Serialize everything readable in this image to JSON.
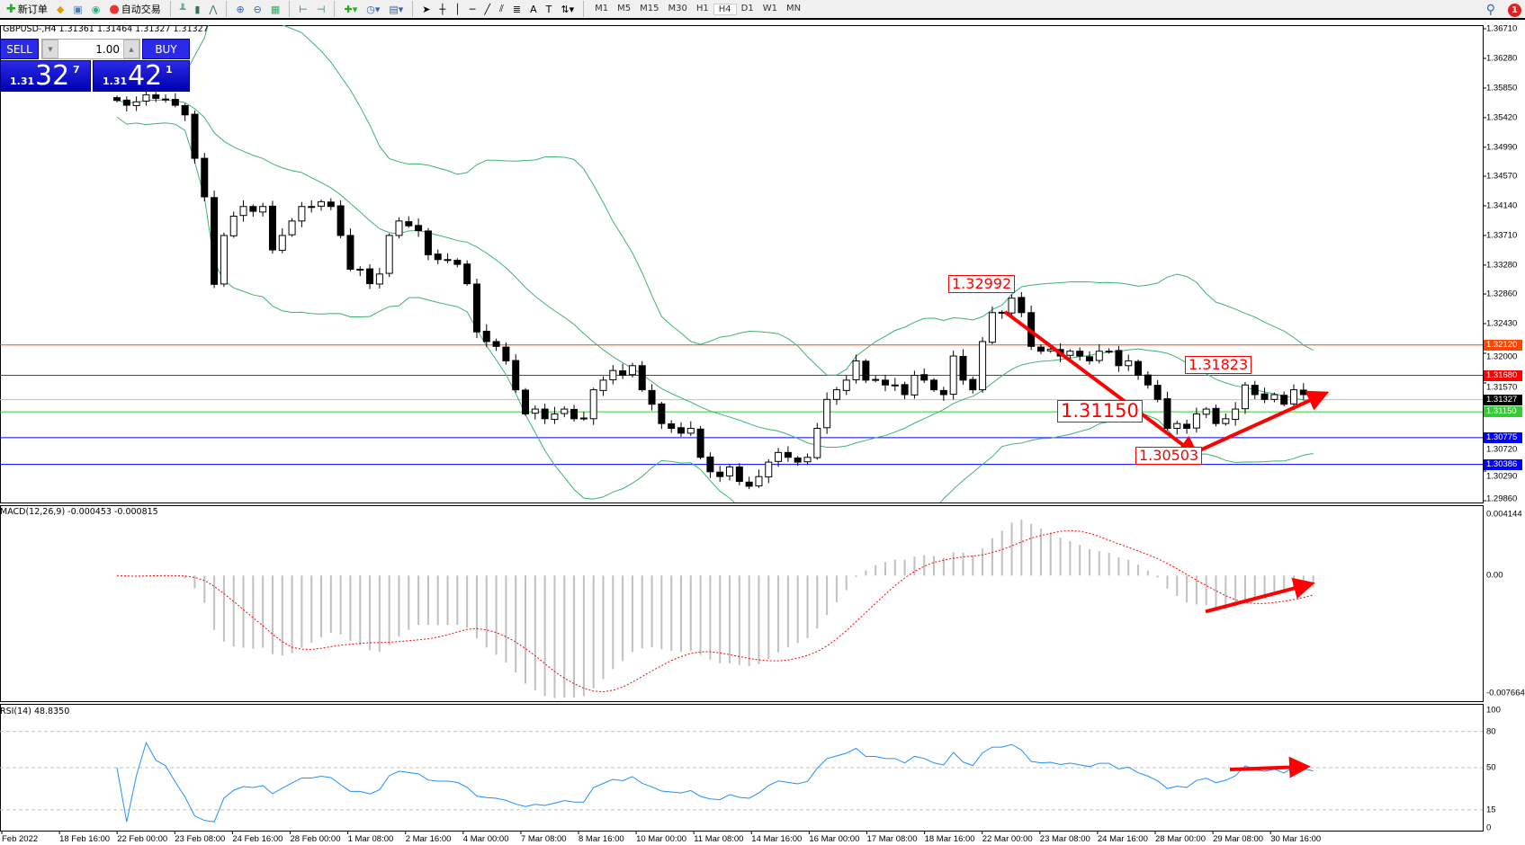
{
  "toolbar": {
    "new_order": "新订单",
    "auto_trading": "自动交易",
    "icons": [
      "new-order-icon",
      "history-icon",
      "terminal-icon",
      "signals-icon",
      "autotrading-icon",
      "bar-chart-icon",
      "candlestick-icon",
      "line-chart-icon",
      "zoom-in-icon",
      "zoom-out-icon",
      "tile-windows-icon",
      "autoscroll-icon",
      "chart-shift-icon",
      "indicators-icon",
      "periods-icon",
      "templates-icon",
      "cursor-icon",
      "crosshair-icon",
      "vertical-line-icon",
      "horizontal-line-icon",
      "trendline-icon",
      "equidistant-channel-icon",
      "fibonacci-icon",
      "text-icon",
      "text-label-icon",
      "arrows-icon"
    ],
    "timeframes": [
      "M1",
      "M5",
      "M15",
      "M30",
      "H1",
      "H4",
      "D1",
      "W1",
      "MN"
    ],
    "active_timeframe": "H4",
    "notifications": "1"
  },
  "chart": {
    "info": "GBPUSD-,H4  1.31361 1.31464 1.31327 1.31327",
    "trade_panel": {
      "sell": "SELL",
      "buy": "BUY",
      "lots": "1.00",
      "sell_prefix": "1.31",
      "sell_big": "32",
      "sell_sup": "7",
      "buy_prefix": "1.31",
      "buy_big": "42",
      "buy_sup": "1"
    },
    "price_axis": [
      "1.36710",
      "1.36280",
      "1.35850",
      "1.35420",
      "1.34990",
      "1.34570",
      "1.34140",
      "1.33710",
      "1.33280",
      "1.32860",
      "1.32430",
      "1.32000",
      "1.31570",
      "1.30720",
      "1.30290",
      "1.29860"
    ],
    "price_range": [
      1.2986,
      1.3671
    ],
    "hlines": [
      {
        "price": "1.32120",
        "color": "#ff4500"
      },
      {
        "price": "1.31680",
        "color": "#ff0000"
      },
      {
        "price": "1.31327",
        "color": "#000000",
        "line": "#c0c0c0"
      },
      {
        "price": "1.31150",
        "color": "#32cd32"
      },
      {
        "price": "1.30775",
        "color": "#0000ff"
      },
      {
        "price": "1.30386",
        "color": "#0000ff"
      }
    ],
    "annotations": [
      "1.32992",
      "1.31823",
      "1.31150",
      "1.30503"
    ],
    "closes": [
      1.3567,
      1.356,
      1.3565,
      1.3575,
      1.357,
      1.3568,
      1.356,
      1.3546,
      1.3483,
      1.3427,
      1.33,
      1.3371,
      1.3399,
      1.3413,
      1.3406,
      1.3413,
      1.335,
      1.3371,
      1.3392,
      1.3413,
      1.3413,
      1.342,
      1.3413,
      1.3371,
      1.3322,
      1.3322,
      1.3301,
      1.3315,
      1.3371,
      1.3392,
      1.3385,
      1.3378,
      1.3343,
      1.3336,
      1.3336,
      1.3329,
      1.3301,
      1.3231,
      1.3217,
      1.321,
      1.3189,
      1.3147,
      1.3112,
      1.3119,
      1.3105,
      1.3112,
      1.3119,
      1.3105,
      1.3105,
      1.3147,
      1.3161,
      1.3175,
      1.3168,
      1.3182,
      1.3147,
      1.3126,
      1.3098,
      1.3091,
      1.3084,
      1.3091,
      1.3049,
      1.3028,
      1.3021,
      1.3035,
      1.3014,
      1.3007,
      1.3021,
      1.3042,
      1.3056,
      1.3049,
      1.3042,
      1.3049,
      1.3091,
      1.3133,
      1.3147,
      1.3161,
      1.3189,
      1.3161,
      1.3161,
      1.3154,
      1.3154,
      1.314,
      1.3168,
      1.3161,
      1.3147,
      1.314,
      1.3196,
      1.3161,
      1.3147,
      1.3217,
      1.3259,
      1.3259,
      1.328,
      1.3259,
      1.321,
      1.3203,
      1.3206,
      1.3196,
      1.3203,
      1.3196,
      1.3189,
      1.3203,
      1.3203,
      1.3182,
      1.3189,
      1.3168,
      1.3154,
      1.3133,
      1.3091,
      1.3098,
      1.3091,
      1.3112,
      1.3119,
      1.3098,
      1.3105,
      1.3119,
      1.3154,
      1.314,
      1.3133,
      1.314,
      1.3126,
      1.3147,
      1.314,
      1.31327
    ],
    "band_color": "#3cb371"
  },
  "macd": {
    "label": "MACD(12,26,9) -0.000453 -0.000815",
    "axis": [
      "0.004144",
      "0.00",
      "-0.007664"
    ],
    "range": [
      -0.007664,
      0.004144
    ],
    "signal_color": "#ff0000"
  },
  "rsi": {
    "label": "RSI(14) 48.8350",
    "axis": [
      "100",
      "80",
      "50",
      "15",
      "0"
    ],
    "levels": [
      80,
      50,
      15
    ],
    "line_color": "#1e90ff"
  },
  "time_axis": [
    "Feb 2022",
    "18 Feb 16:00",
    "22 Feb 00:00",
    "23 Feb 08:00",
    "24 Feb 16:00",
    "28 Feb 00:00",
    "1 Mar 08:00",
    "2 Mar 16:00",
    "4 Mar 00:00",
    "7 Mar 08:00",
    "8 Mar 16:00",
    "10 Mar 00:00",
    "11 Mar 08:00",
    "14 Mar 16:00",
    "16 Mar 00:00",
    "17 Mar 08:00",
    "18 Mar 16:00",
    "22 Mar 00:00",
    "23 Mar 08:00",
    "24 Mar 16:00",
    "28 Mar 00:00",
    "29 Mar 08:00",
    "30 Mar 16:00"
  ]
}
